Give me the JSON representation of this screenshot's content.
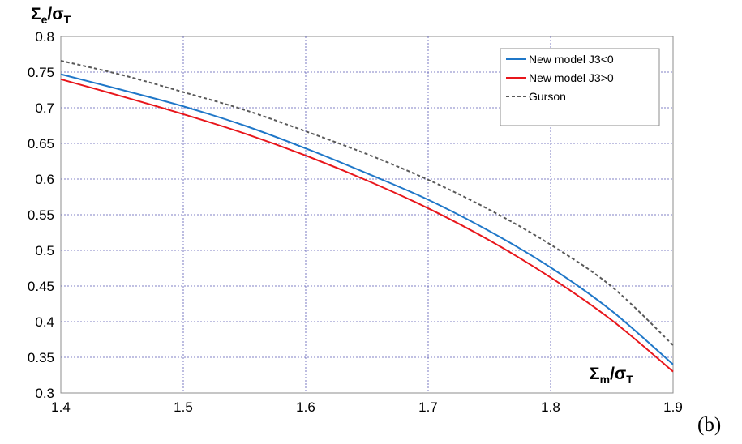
{
  "chart_data": {
    "type": "line",
    "xlabel": {
      "main": "Σ",
      "sub": "m",
      "slash": "/",
      "main2": "σ",
      "sub2": "T"
    },
    "ylabel": {
      "main": "Σ",
      "sub": "e",
      "slash": "/",
      "main2": "σ",
      "sub2": "T"
    },
    "xlim": [
      1.4,
      1.9
    ],
    "ylim": [
      0.3,
      0.8
    ],
    "x_ticks": [
      "1.4",
      "1.5",
      "1.6",
      "1.7",
      "1.8",
      "1.9"
    ],
    "y_ticks": [
      "0.3",
      "0.35",
      "0.4",
      "0.45",
      "0.5",
      "0.55",
      "0.6",
      "0.65",
      "0.7",
      "0.75",
      "0.8"
    ],
    "grid": true,
    "legend_position": "top-right",
    "panel_label": "(b)",
    "series": [
      {
        "name": "New model J3<0",
        "color": "#1f77c8",
        "style": "solid",
        "x": [
          1.4,
          1.45,
          1.5,
          1.55,
          1.6,
          1.65,
          1.7,
          1.75,
          1.8,
          1.85,
          1.9
        ],
        "y": [
          0.747,
          0.725,
          0.702,
          0.675,
          0.643,
          0.608,
          0.571,
          0.527,
          0.476,
          0.415,
          0.34
        ]
      },
      {
        "name": "New model J3>0",
        "color": "#e8161b",
        "style": "solid",
        "x": [
          1.4,
          1.45,
          1.5,
          1.55,
          1.6,
          1.65,
          1.7,
          1.75,
          1.8,
          1.85,
          1.9
        ],
        "y": [
          0.74,
          0.716,
          0.691,
          0.664,
          0.633,
          0.598,
          0.559,
          0.514,
          0.462,
          0.402,
          0.33
        ]
      },
      {
        "name": "Gurson",
        "color": "#595959",
        "style": "dashed",
        "x": [
          1.4,
          1.45,
          1.5,
          1.55,
          1.6,
          1.65,
          1.7,
          1.75,
          1.8,
          1.85,
          1.9
        ],
        "y": [
          0.766,
          0.746,
          0.722,
          0.697,
          0.667,
          0.635,
          0.599,
          0.557,
          0.508,
          0.449,
          0.367
        ]
      }
    ]
  }
}
